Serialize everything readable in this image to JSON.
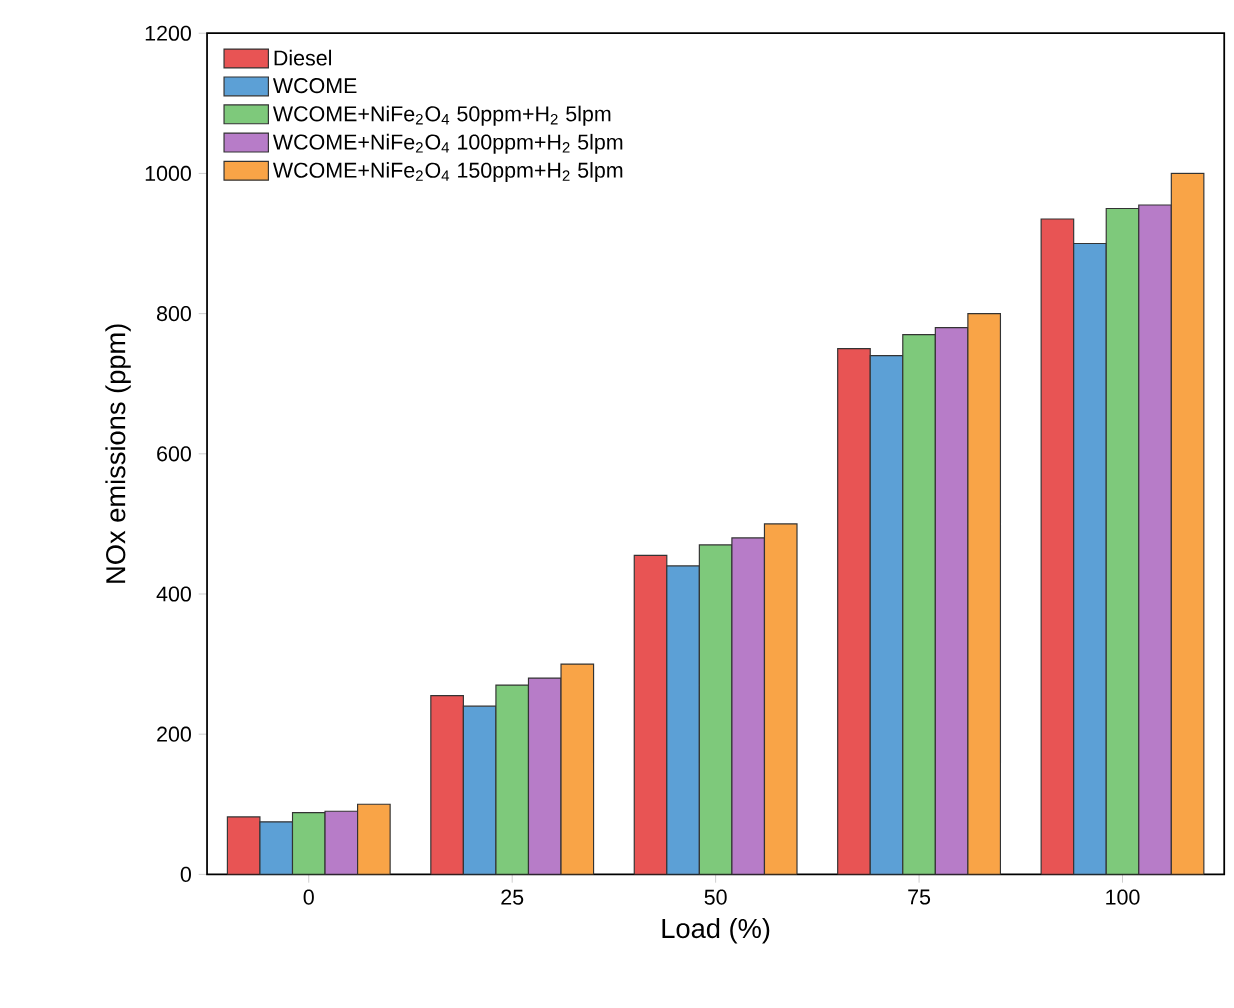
{
  "chart_data": {
    "type": "bar",
    "xlabel": "Load (%)",
    "ylabel": "NOx emissions (ppm)",
    "categories": [
      "0",
      "25",
      "50",
      "75",
      "100"
    ],
    "series": [
      {
        "name": "Diesel",
        "color": "#e85454",
        "values": [
          82,
          255,
          455,
          750,
          935
        ]
      },
      {
        "name": "WCOME",
        "color": "#5ca0d6",
        "values": [
          75,
          240,
          440,
          740,
          900
        ]
      },
      {
        "name": "WCOME+NiFe$_{2}$O$_{4}$ 50ppm+H$_{2}$ 5lpm",
        "color": "#7ec97b",
        "values": [
          88,
          270,
          470,
          770,
          950
        ]
      },
      {
        "name": "WCOME+NiFe$_{2}$O$_{4}$ 100ppm+H$_{2}$ 5lpm",
        "color": "#b77cc8",
        "values": [
          90,
          280,
          480,
          780,
          955
        ]
      },
      {
        "name": "WCOME+NiFe$_{2}$O$_{4}$ 150ppm+H$_{2}$ 5lpm",
        "color": "#f9a447",
        "values": [
          100,
          300,
          500,
          800,
          1000
        ]
      }
    ],
    "ylim": [
      0,
      1200
    ],
    "yticks": [
      0,
      200,
      400,
      600,
      800,
      1000,
      1200
    ],
    "legend": "top left"
  }
}
